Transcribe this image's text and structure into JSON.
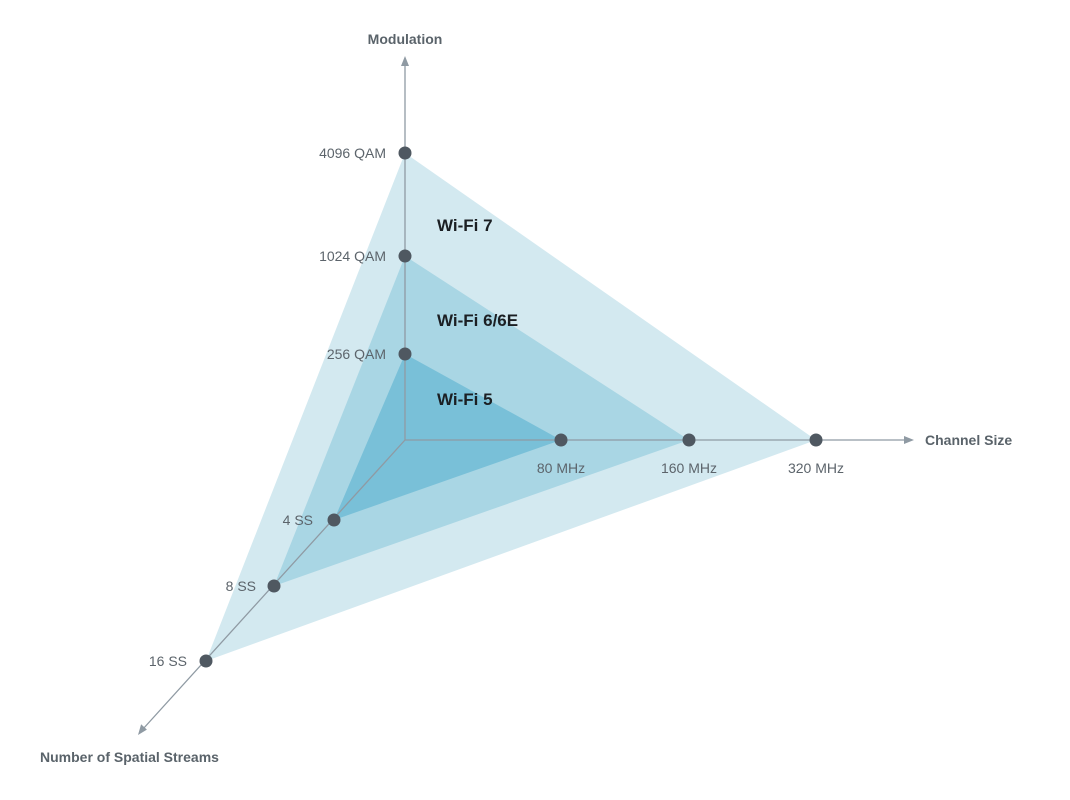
{
  "axes": {
    "modulation": {
      "title": "Modulation",
      "ticks": [
        "256 QAM",
        "1024 QAM",
        "4096 QAM"
      ]
    },
    "channel_size": {
      "title": "Channel Size",
      "ticks": [
        "80 MHz",
        "160 MHz",
        "320 MHz"
      ]
    },
    "spatial_streams": {
      "title": "Number of Spatial Streams",
      "ticks": [
        "4 SS",
        "8 SS",
        "16 SS"
      ]
    }
  },
  "generations": [
    {
      "name": "Wi-Fi 7",
      "modulation": "4096 QAM",
      "channel_size": "320 MHz",
      "spatial_streams": "16 SS",
      "color": "#d3e9f0"
    },
    {
      "name": "Wi-Fi 6/6E",
      "modulation": "1024 QAM",
      "channel_size": "160 MHz",
      "spatial_streams": "8 SS",
      "color": "#a9d6e4"
    },
    {
      "name": "Wi-Fi 5",
      "modulation": "256 QAM",
      "channel_size": "80 MHz",
      "spatial_streams": "4 SS",
      "color": "#79c0d8"
    }
  ],
  "colors": {
    "axis": "#8f9aa3",
    "point": "#4f5861"
  }
}
